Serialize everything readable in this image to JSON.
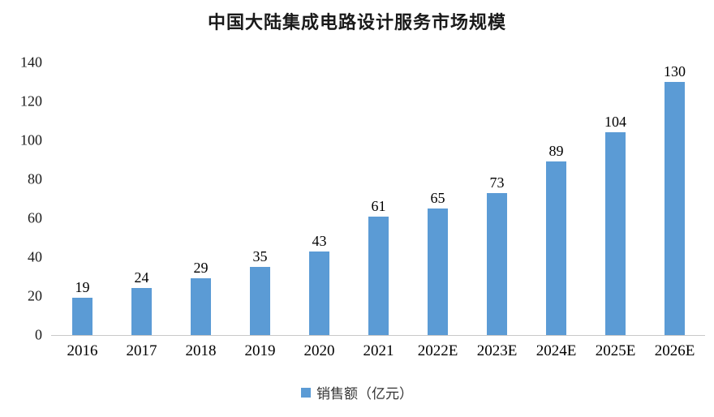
{
  "title": "中国大陆集成电路设计服务市场规模",
  "legend": {
    "label": "销售额（亿元）"
  },
  "colors": {
    "bar": "#5B9BD5",
    "axis_line": "#C9C9C9",
    "text": "#1A1A1A"
  },
  "chart_data": {
    "type": "bar",
    "title": "中国大陆集成电路设计服务市场规模",
    "categories": [
      "2016",
      "2017",
      "2018",
      "2019",
      "2020",
      "2021",
      "2022E",
      "2023E",
      "2024E",
      "2025E",
      "2026E"
    ],
    "values": [
      19,
      24,
      29,
      35,
      43,
      61,
      65,
      73,
      89,
      104,
      130
    ],
    "series_name": "销售额（亿元）",
    "xlabel": "",
    "ylabel": "",
    "ylim": [
      0,
      140
    ],
    "yticks": [
      0,
      20,
      40,
      60,
      80,
      100,
      120,
      140
    ],
    "grid": false,
    "data_labels": true,
    "legend_position": "bottom"
  }
}
